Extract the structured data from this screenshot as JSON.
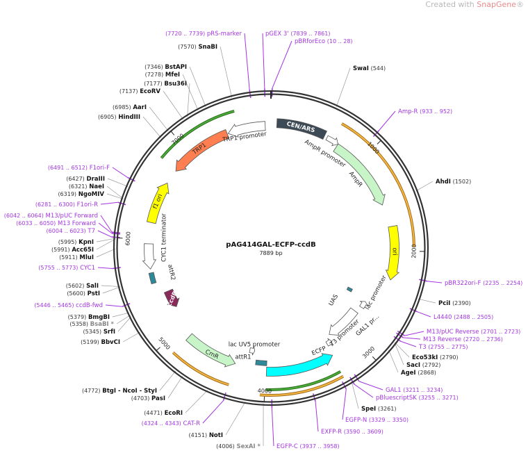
{
  "watermark": {
    "prefix": "Created with ",
    "brand": "SnapGene",
    "suffix": "®"
  },
  "plasmid": {
    "name": "pAG414GAL-ECFP-ccdB",
    "length_label": "7889 bp",
    "length": 7889
  },
  "ticks": [
    "1000",
    "2000",
    "3000",
    "4000",
    "5000",
    "6000",
    "7000"
  ],
  "colors": {
    "primer": "#a335e0",
    "enzyme": "#111111",
    "backbone": "#333333"
  },
  "sites": [
    {
      "name": "pRS-marker",
      "pos_text": "(7720 .. 7739)",
      "pos": 7720,
      "kind": "primer"
    },
    {
      "name": "SnaBI",
      "pos_text": "(7570)",
      "pos": 7570,
      "kind": "enzyme"
    },
    {
      "name": "BstAPI",
      "pos_text": "(7346)",
      "pos": 7346,
      "kind": "enzyme"
    },
    {
      "name": "MfeI",
      "pos_text": "(7278)",
      "pos": 7278,
      "kind": "enzyme"
    },
    {
      "name": "Bsu36I",
      "pos_text": "(7177)",
      "pos": 7177,
      "kind": "enzyme"
    },
    {
      "name": "EcoRV",
      "pos_text": "(7137)",
      "pos": 7137,
      "kind": "enzyme"
    },
    {
      "name": "AarI",
      "pos_text": "(6985)",
      "pos": 6985,
      "kind": "enzyme"
    },
    {
      "name": "HindIII",
      "pos_text": "(6905)",
      "pos": 6905,
      "kind": "enzyme"
    },
    {
      "name": "F1ori-F",
      "pos_text": "(6491 .. 6512)",
      "pos": 6491,
      "kind": "primer"
    },
    {
      "name": "DraIII",
      "pos_text": "(6427)",
      "pos": 6427,
      "kind": "enzyme"
    },
    {
      "name": "NaeI",
      "pos_text": "(6321)",
      "pos": 6321,
      "kind": "enzyme"
    },
    {
      "name": "NgoMIV",
      "pos_text": "(6319)",
      "pos": 6319,
      "kind": "enzyme"
    },
    {
      "name": "F1ori-R",
      "pos_text": "(6281 .. 6300)",
      "pos": 6281,
      "kind": "primer"
    },
    {
      "name": "M13/pUC Forward",
      "pos_text": "(6042 .. 6064)",
      "pos": 6042,
      "kind": "primer"
    },
    {
      "name": "M13 Forward",
      "pos_text": "(6033 .. 6050)",
      "pos": 6033,
      "kind": "primer"
    },
    {
      "name": "T7",
      "pos_text": "(6004 .. 6023)",
      "pos": 6004,
      "kind": "primer"
    },
    {
      "name": "KpnI",
      "pos_text": "(5995)",
      "pos": 5995,
      "kind": "enzyme"
    },
    {
      "name": "Acc65I",
      "pos_text": "(5991)",
      "pos": 5991,
      "kind": "enzyme"
    },
    {
      "name": "MluI",
      "pos_text": "(5911)",
      "pos": 5911,
      "kind": "enzyme"
    },
    {
      "name": "CYC1",
      "pos_text": "(5755 .. 5773)",
      "pos": 5755,
      "kind": "primer"
    },
    {
      "name": "SalI",
      "pos_text": "(5602)",
      "pos": 5602,
      "kind": "enzyme"
    },
    {
      "name": "PstI",
      "pos_text": "(5600)",
      "pos": 5600,
      "kind": "enzyme"
    },
    {
      "name": "ccdB-fwd",
      "pos_text": "(5446 .. 5465)",
      "pos": 5446,
      "kind": "primer"
    },
    {
      "name": "BmgBI",
      "pos_text": "(5379)",
      "pos": 5379,
      "kind": "enzyme"
    },
    {
      "name": "BsaBI *",
      "pos_text": "(5358)",
      "pos": 5358,
      "kind": "star"
    },
    {
      "name": "SrfI",
      "pos_text": "(5345)",
      "pos": 5345,
      "kind": "enzyme"
    },
    {
      "name": "BbvCI",
      "pos_text": "(5199)",
      "pos": 5199,
      "kind": "enzyme"
    },
    {
      "name": "BtgI - NcoI - StyI",
      "pos_text": "(4772)",
      "pos": 4772,
      "kind": "enzyme"
    },
    {
      "name": "PasI",
      "pos_text": "(4703)",
      "pos": 4703,
      "kind": "enzyme"
    },
    {
      "name": "EcoRI",
      "pos_text": "(4471)",
      "pos": 4471,
      "kind": "enzyme"
    },
    {
      "name": "CAT-R",
      "pos_text": "(4324 .. 4343)",
      "pos": 4324,
      "kind": "primer"
    },
    {
      "name": "NotI",
      "pos_text": "(4151)",
      "pos": 4151,
      "kind": "enzyme"
    },
    {
      "name": "SexAI *",
      "pos_text": "(4006)",
      "pos": 4006,
      "kind": "star"
    },
    {
      "name": "pGEX 3'",
      "pos_text": "(7839 .. 7861)",
      "pos": 7839,
      "kind": "primer"
    },
    {
      "name": "pBRforEco",
      "pos_text": "(10 .. 28)",
      "pos": 10,
      "kind": "primer"
    },
    {
      "name": "SwaI",
      "pos_text": "(544)",
      "pos": 544,
      "kind": "enzyme"
    },
    {
      "name": "Amp-R",
      "pos_text": "(933 .. 952)",
      "pos": 933,
      "kind": "primer"
    },
    {
      "name": "AhdI",
      "pos_text": "(1502)",
      "pos": 1502,
      "kind": "enzyme"
    },
    {
      "name": "pBR322ori-F",
      "pos_text": "(2235 .. 2254)",
      "pos": 2235,
      "kind": "primer"
    },
    {
      "name": "PciI",
      "pos_text": "(2390)",
      "pos": 2390,
      "kind": "enzyme"
    },
    {
      "name": "L4440",
      "pos_text": "(2488 .. 2505)",
      "pos": 2488,
      "kind": "primer"
    },
    {
      "name": "M13/pUC Reverse",
      "pos_text": "(2701 .. 2723)",
      "pos": 2701,
      "kind": "primer"
    },
    {
      "name": "M13 Reverse",
      "pos_text": "(2720 .. 2736)",
      "pos": 2720,
      "kind": "primer"
    },
    {
      "name": "T3",
      "pos_text": "(2755 .. 2775)",
      "pos": 2755,
      "kind": "primer"
    },
    {
      "name": "Eco53kI",
      "pos_text": "(2790)",
      "pos": 2790,
      "kind": "enzyme"
    },
    {
      "name": "SacI",
      "pos_text": "(2792)",
      "pos": 2792,
      "kind": "enzyme"
    },
    {
      "name": "AgeI",
      "pos_text": "(2868)",
      "pos": 2868,
      "kind": "enzyme"
    },
    {
      "name": "GAL1",
      "pos_text": "(3211 .. 3234)",
      "pos": 3211,
      "kind": "primer"
    },
    {
      "name": "pBluescriptSK",
      "pos_text": "(3255 .. 3271)",
      "pos": 3255,
      "kind": "primer"
    },
    {
      "name": "SpeI",
      "pos_text": "(3261)",
      "pos": 3261,
      "kind": "enzyme"
    },
    {
      "name": "EGFP-N",
      "pos_text": "(3329 .. 3350)",
      "pos": 3329,
      "kind": "primer"
    },
    {
      "name": "EXFP-R",
      "pos_text": "(3590 .. 3609)",
      "pos": 3590,
      "kind": "primer"
    },
    {
      "name": "EGFP-C",
      "pos_text": "(3937 .. 3958)",
      "pos": 3937,
      "kind": "primer"
    }
  ],
  "features": [
    {
      "name": "CEN/ARS",
      "start": 60,
      "end": 560,
      "dir": 0,
      "color": "#3d4a55",
      "label_inside": true
    },
    {
      "name": "AmpR promoter",
      "start": 590,
      "end": 720,
      "dir": 1,
      "color": "#ffffff"
    },
    {
      "name": "AmpR",
      "start": 720,
      "end": 1510,
      "dir": 1,
      "color": "#c8f5c8"
    },
    {
      "name": "ori",
      "start": 1750,
      "end": 2300,
      "dir": 1,
      "color": "#ffff00"
    },
    {
      "name": "lac promoter",
      "start": 2620,
      "end": 2700,
      "dir": -1,
      "color": "#ffffff"
    },
    {
      "name": "UAS",
      "start": 2560,
      "end": 2600,
      "dir": 0,
      "color": "#2e8a99"
    },
    {
      "name": "GAL1 pr...",
      "start": 2780,
      "end": 3200,
      "dir": 1,
      "color": "#ffffff"
    },
    {
      "name": "T3 promoter",
      "start": 3220,
      "end": 3280,
      "dir": -1,
      "color": "#ffffff"
    },
    {
      "name": "ECFP",
      "start": 3290,
      "end": 3990,
      "dir": -1,
      "color": "#00ffff"
    },
    {
      "name": "attR1",
      "start": 3990,
      "end": 4110,
      "dir": 0,
      "color": "#2e8a99"
    },
    {
      "name": "lac UV5 promoter",
      "start": 4140,
      "end": 4200,
      "dir": -1,
      "color": "#ffffff"
    },
    {
      "name": "CmR",
      "start": 4320,
      "end": 4880,
      "dir": -1,
      "color": "#c8f5c8"
    },
    {
      "name": "ccdB",
      "start": 5220,
      "end": 5420,
      "dir": -1,
      "color": "#8a2a5a",
      "label_inside": true
    },
    {
      "name": "attR2",
      "start": 5550,
      "end": 5660,
      "dir": 0,
      "color": "#2e8a99"
    },
    {
      "name": "CYC1 terminator",
      "start": 5700,
      "end": 5960,
      "dir": -1,
      "color": "#ffffff"
    },
    {
      "name": "f1 ori",
      "start": 6180,
      "end": 6620,
      "dir": 1,
      "color": "#ffff00"
    },
    {
      "name": "TRP1",
      "start": 6770,
      "end": 7430,
      "dir": -1,
      "color": "#ff7f50"
    },
    {
      "name": "TRP1 promoter",
      "start": 7440,
      "end": 7830,
      "dir": -1,
      "color": "#ffffff"
    }
  ]
}
